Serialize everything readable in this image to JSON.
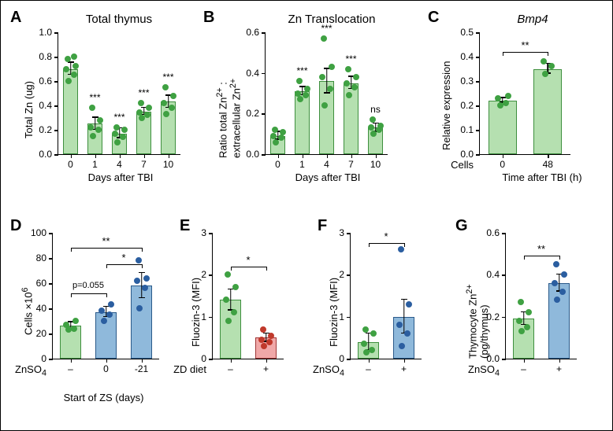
{
  "colors": {
    "green_fill": "#b5e0b0",
    "green_stroke": "#3e8f3e",
    "blue_fill": "#8fb9db",
    "blue_stroke": "#2a5a8a",
    "red_fill": "#f0a8a8",
    "red_stroke": "#a03838",
    "point_green": "#3fa142",
    "point_blue": "#2b5ea0",
    "point_red": "#c0392b"
  },
  "A": {
    "label": "A",
    "title": "Total thymus",
    "ylabel": "Total Zn (ug)",
    "xlabel": "Days after TBI",
    "ymax": 1.0,
    "ytick_step": 0.2,
    "categories": [
      "0",
      "1",
      "4",
      "7",
      "10"
    ],
    "means": [
      0.7,
      0.25,
      0.17,
      0.35,
      0.43
    ],
    "errs": [
      0.05,
      0.05,
      0.04,
      0.03,
      0.05
    ],
    "points": [
      [
        0.6,
        0.65,
        0.7,
        0.72,
        0.78,
        0.8
      ],
      [
        0.15,
        0.2,
        0.22,
        0.28,
        0.38
      ],
      [
        0.1,
        0.14,
        0.17,
        0.2,
        0.22
      ],
      [
        0.3,
        0.32,
        0.34,
        0.38,
        0.42
      ],
      [
        0.33,
        0.38,
        0.42,
        0.48,
        0.55
      ]
    ],
    "sig": [
      "",
      "***",
      "***",
      "***",
      "***"
    ]
  },
  "B": {
    "label": "B",
    "title": "Zn Translocation",
    "ylabel": "Ratio total Zn²⁺ :\nextracellular Zn²⁺",
    "xlabel": "Days after TBI",
    "ymax": 0.6,
    "ytick_step": 0.2,
    "categories": [
      "0",
      "1",
      "4",
      "7",
      "10"
    ],
    "means": [
      0.09,
      0.31,
      0.36,
      0.35,
      0.13
    ],
    "errs": [
      0.02,
      0.02,
      0.06,
      0.03,
      0.02
    ],
    "points": [
      [
        0.06,
        0.08,
        0.09,
        0.11,
        0.12
      ],
      [
        0.27,
        0.29,
        0.3,
        0.32,
        0.36
      ],
      [
        0.24,
        0.32,
        0.38,
        0.43,
        0.57
      ],
      [
        0.29,
        0.33,
        0.35,
        0.38,
        0.42
      ],
      [
        0.1,
        0.12,
        0.13,
        0.14,
        0.17
      ]
    ],
    "sig": [
      "",
      "***",
      "***",
      "***",
      "ns"
    ]
  },
  "C": {
    "label": "C",
    "title": "Bmp4",
    "title_italic": true,
    "ylabel": "Relative expression",
    "xlabel": "Time after TBI (h)",
    "row_label": "Cells",
    "ymax": 0.5,
    "ytick_step": 0.1,
    "categories": [
      "0",
      "48"
    ],
    "means": [
      0.22,
      0.35
    ],
    "errs": [
      0.01,
      0.02
    ],
    "points": [
      [
        0.2,
        0.21,
        0.23,
        0.24
      ],
      [
        0.33,
        0.36,
        0.38
      ]
    ],
    "sig_bracket": {
      "text": "**",
      "from": 0,
      "to": 1,
      "y": 0.42
    }
  },
  "D": {
    "label": "D",
    "ylabel": "Cells ×10⁶",
    "xlabel": "Start of ZS (days)",
    "row_label": "ZnSO₄",
    "ymax": 100,
    "ytick_step": 20,
    "categories": [
      "–",
      "0",
      "-21"
    ],
    "bar_colors": [
      "green",
      "blue",
      "blue"
    ],
    "means": [
      26,
      37,
      58
    ],
    "errs": [
      3,
      4,
      10
    ],
    "points": [
      [
        23,
        24,
        27,
        30
      ],
      [
        30,
        35,
        38,
        43
      ],
      [
        40,
        56,
        62,
        64,
        78
      ]
    ],
    "brackets": [
      {
        "from": 0,
        "to": 2,
        "y": 88,
        "text": "**"
      },
      {
        "from": 1,
        "to": 2,
        "y": 75,
        "text": "*"
      }
    ],
    "ptext": {
      "text": "p=0.055",
      "from": 0,
      "to": 1,
      "y": 52
    }
  },
  "E": {
    "label": "E",
    "ylabel": "Fluozin-3 (MFI)",
    "row_label": "ZD diet",
    "ymax": 3,
    "ytick_step": 1,
    "categories": [
      "–",
      "+"
    ],
    "bar_colors": [
      "green",
      "red"
    ],
    "means": [
      1.4,
      0.5
    ],
    "errs": [
      0.25,
      0.1
    ],
    "points": [
      [
        0.9,
        1.1,
        1.4,
        1.7,
        2.0
      ],
      [
        0.3,
        0.4,
        0.45,
        0.55,
        0.7
      ]
    ],
    "sig_bracket": {
      "text": "*",
      "from": 0,
      "to": 1,
      "y": 2.2
    }
  },
  "F": {
    "label": "F",
    "ylabel": "Fluozin-3 (MFI)",
    "row_label": "ZnSO₄",
    "ymax": 3,
    "ytick_step": 1,
    "categories": [
      "–",
      "+"
    ],
    "bar_colors": [
      "green",
      "blue"
    ],
    "means": [
      0.4,
      1.0
    ],
    "errs": [
      0.2,
      0.4
    ],
    "points": [
      [
        0.15,
        0.2,
        0.35,
        0.6,
        0.7
      ],
      [
        0.3,
        0.6,
        0.8,
        1.3,
        2.6
      ]
    ],
    "sig_bracket": {
      "text": "*",
      "from": 0,
      "to": 1,
      "y": 2.75
    }
  },
  "G": {
    "label": "G",
    "ylabel": "Thymocyte Zn²⁺\n(pg/thymus)",
    "row_label": "ZnSO₄",
    "ymax": 0.6,
    "ytick_step": 0.2,
    "categories": [
      "–",
      "+"
    ],
    "bar_colors": [
      "green",
      "blue"
    ],
    "means": [
      0.19,
      0.36
    ],
    "errs": [
      0.03,
      0.04
    ],
    "points": [
      [
        0.13,
        0.15,
        0.18,
        0.22,
        0.27
      ],
      [
        0.28,
        0.32,
        0.36,
        0.4,
        0.45
      ]
    ],
    "sig_bracket": {
      "text": "**",
      "from": 0,
      "to": 1,
      "y": 0.49
    }
  }
}
